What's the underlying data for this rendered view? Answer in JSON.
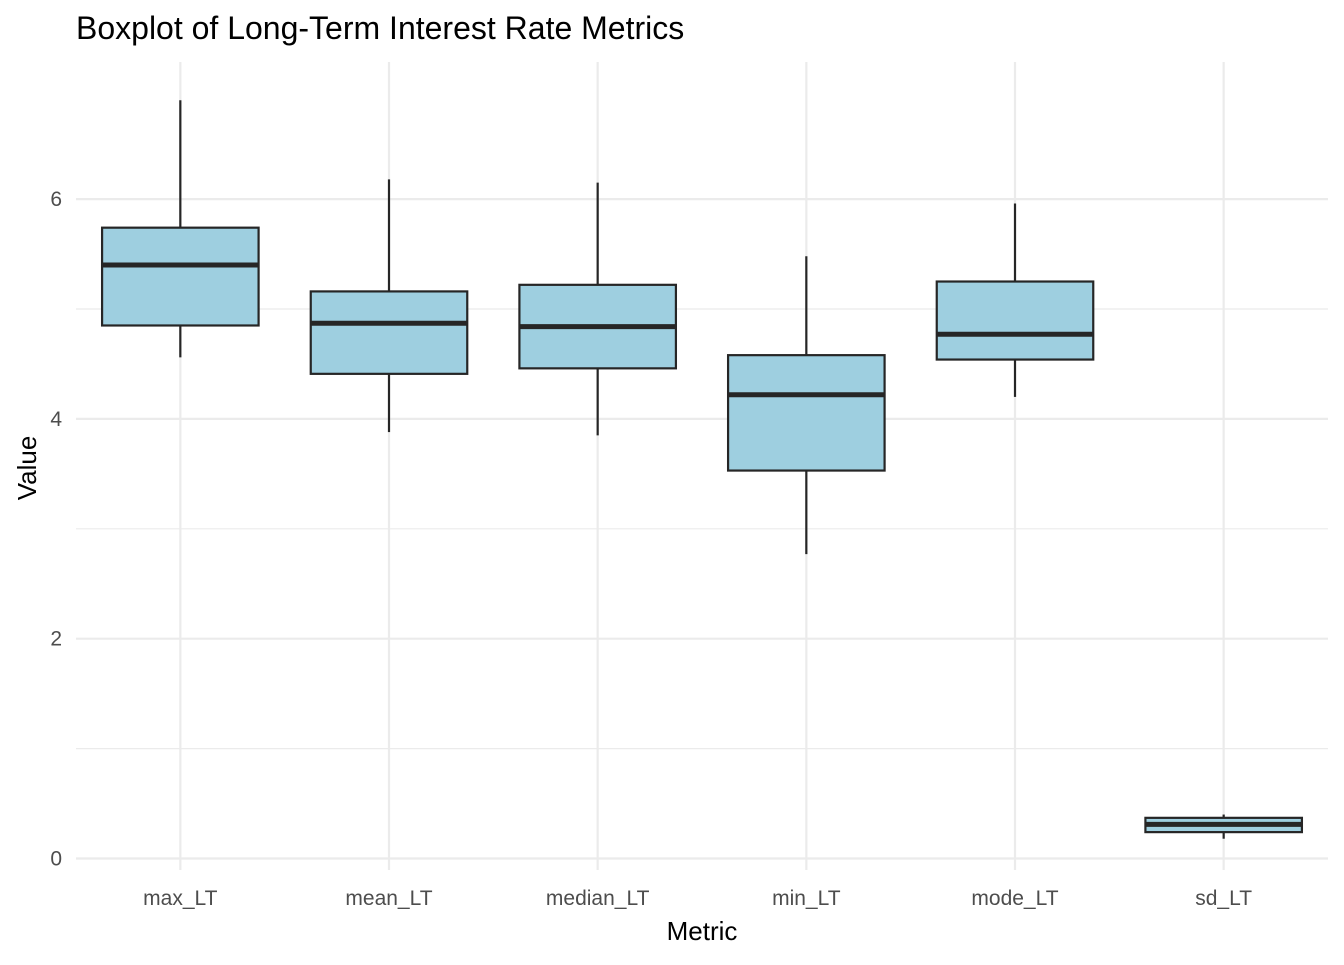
{
  "chart_data": {
    "type": "boxplot",
    "title": "Boxplot of Long-Term Interest Rate Metrics",
    "xlabel": "Metric",
    "ylabel": "Value",
    "ylim": [
      -0.1,
      7.0
    ],
    "yticks": [
      "0",
      "2",
      "4",
      "6"
    ],
    "ytick_values": [
      0,
      2,
      4,
      6
    ],
    "minor_ytick_values": [
      1,
      3,
      5
    ],
    "grid": true,
    "box_fill": "#9ecfe0",
    "box_stroke": "#262626",
    "grid_color": "#ebebeb",
    "categories": [
      "max_LT",
      "mean_LT",
      "median_LT",
      "min_LT",
      "mode_LT",
      "sd_LT"
    ],
    "boxes": [
      {
        "category": "max_LT",
        "whisker_low": 4.56,
        "q1": 4.85,
        "median": 5.4,
        "q3": 5.74,
        "whisker_high": 6.9
      },
      {
        "category": "mean_LT",
        "whisker_low": 3.88,
        "q1": 4.41,
        "median": 4.87,
        "q3": 5.16,
        "whisker_high": 6.18
      },
      {
        "category": "median_LT",
        "whisker_low": 3.85,
        "q1": 4.46,
        "median": 4.84,
        "q3": 5.22,
        "whisker_high": 6.15
      },
      {
        "category": "min_LT",
        "whisker_low": 2.77,
        "q1": 3.53,
        "median": 4.22,
        "q3": 4.58,
        "whisker_high": 5.48
      },
      {
        "category": "mode_LT",
        "whisker_low": 4.2,
        "q1": 4.54,
        "median": 4.77,
        "q3": 5.25,
        "whisker_high": 5.96
      },
      {
        "category": "sd_LT",
        "whisker_low": 0.18,
        "q1": 0.24,
        "median": 0.31,
        "q3": 0.37,
        "whisker_high": 0.4
      }
    ]
  }
}
